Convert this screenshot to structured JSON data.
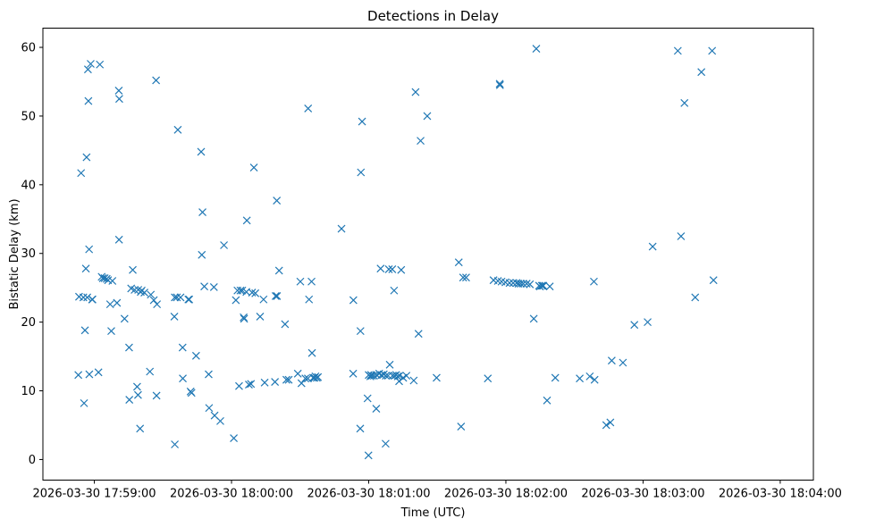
{
  "chart_data": {
    "type": "scatter",
    "title": "Detections in Delay",
    "xlabel": "Time (UTC)",
    "ylabel": "Bistatic Delay (km)",
    "marker": "x",
    "color": "#1f77b4",
    "grid": false,
    "x_unit": "seconds after 2026-03-30 17:58:00",
    "xlim": [
      37.5,
      374.5
    ],
    "ylim": [
      -3.0,
      62.8
    ],
    "x_ticks": [
      {
        "x": 60,
        "label": "2026-03-30 17:59:00"
      },
      {
        "x": 120,
        "label": "2026-03-30 18:00:00"
      },
      {
        "x": 180,
        "label": "2026-03-30 18:01:00"
      },
      {
        "x": 240,
        "label": "2026-03-30 18:02:00"
      },
      {
        "x": 300,
        "label": "2026-03-30 18:03:00"
      },
      {
        "x": 360,
        "label": "2026-03-30 18:04:00"
      }
    ],
    "y_ticks": [
      {
        "y": 0,
        "label": "0"
      },
      {
        "y": 10,
        "label": "10"
      },
      {
        "y": 20,
        "label": "20"
      },
      {
        "y": 30,
        "label": "30"
      },
      {
        "y": 40,
        "label": "40"
      },
      {
        "y": 50,
        "label": "50"
      },
      {
        "y": 60,
        "label": "60"
      }
    ],
    "points": [
      [
        53.0,
        12.3
      ],
      [
        53.3,
        23.7
      ],
      [
        54.2,
        41.7
      ],
      [
        55.2,
        23.6
      ],
      [
        55.5,
        8.2
      ],
      [
        55.9,
        18.8
      ],
      [
        56.3,
        27.8
      ],
      [
        56.6,
        44.0
      ],
      [
        56.9,
        23.6
      ],
      [
        57.2,
        56.8
      ],
      [
        57.4,
        52.2
      ],
      [
        57.7,
        30.6
      ],
      [
        57.8,
        12.4
      ],
      [
        58.4,
        57.6
      ],
      [
        59.0,
        23.3
      ],
      [
        59.2,
        23.3
      ],
      [
        61.8,
        12.7
      ],
      [
        62.4,
        57.5
      ],
      [
        63.2,
        26.6
      ],
      [
        63.7,
        26.4
      ],
      [
        64.5,
        26.4
      ],
      [
        65.4,
        26.3
      ],
      [
        66.0,
        26.1
      ],
      [
        66.9,
        22.6
      ],
      [
        67.4,
        18.7
      ],
      [
        67.9,
        26.0
      ],
      [
        69.9,
        22.8
      ],
      [
        70.7,
        53.7
      ],
      [
        70.8,
        32.0
      ],
      [
        70.9,
        52.5
      ],
      [
        73.2,
        20.5
      ],
      [
        75.2,
        16.3
      ],
      [
        75.3,
        8.7
      ],
      [
        76.1,
        24.9
      ],
      [
        76.8,
        27.6
      ],
      [
        77.6,
        24.7
      ],
      [
        78.7,
        10.6
      ],
      [
        79.1,
        9.4
      ],
      [
        79.2,
        24.7
      ],
      [
        80.0,
        4.5
      ],
      [
        80.3,
        24.4
      ],
      [
        80.7,
        24.6
      ],
      [
        81.9,
        24.3
      ],
      [
        84.3,
        12.8
      ],
      [
        84.7,
        24.0
      ],
      [
        86.0,
        23.2
      ],
      [
        87.0,
        55.2
      ],
      [
        87.2,
        9.3
      ],
      [
        87.4,
        22.6
      ],
      [
        95.0,
        20.8
      ],
      [
        95.2,
        2.2
      ],
      [
        95.2,
        23.6
      ],
      [
        96.1,
        23.6
      ],
      [
        96.5,
        48.0
      ],
      [
        97.7,
        23.6
      ],
      [
        98.6,
        16.3
      ],
      [
        98.7,
        11.8
      ],
      [
        101.1,
        23.3
      ],
      [
        101.5,
        23.3
      ],
      [
        102.1,
        9.9
      ],
      [
        102.5,
        9.7
      ],
      [
        104.5,
        15.1
      ],
      [
        106.7,
        44.8
      ],
      [
        107.0,
        29.8
      ],
      [
        107.3,
        36.0
      ],
      [
        108.1,
        25.2
      ],
      [
        110.0,
        12.4
      ],
      [
        110.2,
        7.5
      ],
      [
        112.3,
        25.1
      ],
      [
        112.6,
        6.4
      ],
      [
        115.1,
        5.6
      ],
      [
        116.7,
        31.2
      ],
      [
        121.0,
        3.1
      ],
      [
        121.9,
        23.2
      ],
      [
        122.6,
        24.6
      ],
      [
        123.3,
        10.7
      ],
      [
        123.9,
        24.6
      ],
      [
        124.7,
        24.6
      ],
      [
        125.3,
        20.7
      ],
      [
        125.5,
        20.5
      ],
      [
        126.5,
        24.4
      ],
      [
        126.7,
        34.8
      ],
      [
        127.6,
        10.9
      ],
      [
        128.5,
        11.0
      ],
      [
        129.0,
        24.3
      ],
      [
        129.8,
        42.5
      ],
      [
        130.4,
        24.2
      ],
      [
        132.5,
        20.8
      ],
      [
        134.0,
        23.3
      ],
      [
        134.5,
        11.2
      ],
      [
        139.0,
        11.3
      ],
      [
        139.3,
        23.8
      ],
      [
        139.8,
        37.7
      ],
      [
        139.9,
        23.8
      ],
      [
        140.8,
        27.5
      ],
      [
        143.4,
        19.7
      ],
      [
        144.0,
        11.6
      ],
      [
        145.0,
        11.6
      ],
      [
        149.0,
        12.5
      ],
      [
        150.1,
        25.9
      ],
      [
        150.6,
        11.1
      ],
      [
        152.3,
        11.8
      ],
      [
        153.4,
        11.8
      ],
      [
        153.5,
        51.1
      ],
      [
        153.9,
        23.3
      ],
      [
        155.0,
        25.9
      ],
      [
        155.2,
        15.5
      ],
      [
        155.7,
        11.9
      ],
      [
        156.3,
        11.9
      ],
      [
        156.7,
        12.1
      ],
      [
        157.3,
        11.9
      ],
      [
        157.8,
        12.0
      ],
      [
        168.1,
        33.6
      ],
      [
        173.2,
        12.5
      ],
      [
        173.3,
        23.2
      ],
      [
        176.3,
        4.5
      ],
      [
        176.4,
        18.7
      ],
      [
        176.6,
        41.8
      ],
      [
        177.1,
        49.2
      ],
      [
        179.5,
        8.9
      ],
      [
        179.9,
        0.6
      ],
      [
        180.0,
        12.3
      ],
      [
        180.7,
        12.1
      ],
      [
        181.0,
        12.3
      ],
      [
        181.5,
        12.2
      ],
      [
        182.3,
        12.2
      ],
      [
        183.3,
        7.4
      ],
      [
        183.5,
        12.3
      ],
      [
        184.6,
        12.5
      ],
      [
        185.2,
        27.8
      ],
      [
        185.6,
        12.3
      ],
      [
        186.6,
        12.4
      ],
      [
        187.4,
        2.3
      ],
      [
        187.5,
        12.2
      ],
      [
        188.5,
        12.2
      ],
      [
        188.8,
        27.7
      ],
      [
        189.2,
        13.8
      ],
      [
        190.3,
        27.7
      ],
      [
        190.4,
        12.2
      ],
      [
        191.1,
        24.6
      ],
      [
        191.3,
        12.2
      ],
      [
        192.0,
        12.3
      ],
      [
        192.7,
        12.1
      ],
      [
        193.3,
        11.4
      ],
      [
        193.5,
        12.2
      ],
      [
        194.2,
        27.6
      ],
      [
        195.1,
        11.9
      ],
      [
        196.5,
        12.2
      ],
      [
        199.7,
        11.5
      ],
      [
        200.5,
        53.5
      ],
      [
        201.8,
        18.3
      ],
      [
        202.7,
        46.4
      ],
      [
        205.6,
        50.0
      ],
      [
        209.7,
        11.9
      ],
      [
        219.4,
        28.7
      ],
      [
        220.4,
        4.8
      ],
      [
        221.3,
        26.5
      ],
      [
        222.6,
        26.5
      ],
      [
        232.1,
        11.8
      ],
      [
        234.6,
        26.1
      ],
      [
        236.5,
        26.0
      ],
      [
        237.3,
        54.7
      ],
      [
        237.4,
        54.5
      ],
      [
        238.1,
        25.9
      ],
      [
        239.8,
        25.8
      ],
      [
        241.6,
        25.7
      ],
      [
        243.2,
        25.7
      ],
      [
        244.7,
        25.7
      ],
      [
        245.5,
        25.6
      ],
      [
        246.5,
        25.6
      ],
      [
        247.6,
        25.6
      ],
      [
        249.1,
        25.6
      ],
      [
        250.5,
        25.5
      ],
      [
        252.2,
        20.5
      ],
      [
        253.3,
        59.8
      ],
      [
        254.5,
        25.3
      ],
      [
        254.9,
        25.2
      ],
      [
        255.7,
        25.3
      ],
      [
        256.0,
        25.3
      ],
      [
        256.4,
        25.3
      ],
      [
        258.0,
        8.6
      ],
      [
        259.2,
        25.2
      ],
      [
        261.6,
        11.9
      ],
      [
        272.3,
        11.8
      ],
      [
        276.7,
        12.1
      ],
      [
        278.5,
        25.9
      ],
      [
        278.8,
        11.6
      ],
      [
        283.9,
        5.0
      ],
      [
        285.7,
        5.4
      ],
      [
        286.3,
        14.4
      ],
      [
        291.2,
        14.1
      ],
      [
        296.2,
        19.6
      ],
      [
        302.0,
        20.0
      ],
      [
        304.2,
        31.0
      ],
      [
        315.2,
        59.5
      ],
      [
        316.6,
        32.5
      ],
      [
        318.1,
        51.9
      ],
      [
        322.8,
        23.6
      ],
      [
        325.5,
        56.4
      ],
      [
        330.2,
        59.5
      ],
      [
        330.8,
        26.1
      ]
    ]
  }
}
